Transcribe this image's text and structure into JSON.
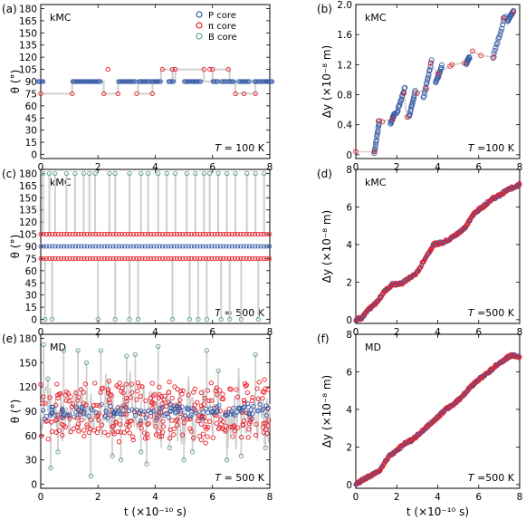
{
  "shared": {
    "xlabel": "t (×10⁻¹⁰ s)",
    "x_ticks": [
      "0",
      "2",
      "4",
      "6",
      "8"
    ],
    "theta_ylabel": "θ (°)",
    "dy_ylabel": "Δy (×10⁻⁸ m)"
  },
  "legend": [
    {
      "label": "P core",
      "color": "#3a5fa8"
    },
    {
      "label": "π core",
      "color": "#e8202a"
    },
    {
      "label": "B core",
      "color": "#5fa08a"
    }
  ],
  "colors": {
    "line": "#c8c8c8",
    "P": "#3a5fa8",
    "pi": "#e8202a",
    "B": "#5fa08a",
    "track": "#cfcfcf"
  },
  "chart_data": [
    {
      "panel": "(a)",
      "type": "scatter",
      "tag": "kMC",
      "note_prefix": "T",
      "note_value": "= 100 K",
      "xlabel": "",
      "ylabel": "θ (°)",
      "xlim": [
        0,
        8
      ],
      "ylim": [
        -5,
        185
      ],
      "yticks": [
        "0",
        "15",
        "30",
        "45",
        "60",
        "75",
        "90",
        "105",
        "120",
        "135",
        "150",
        "165",
        "180"
      ],
      "step_path": [
        [
          0,
          75
        ],
        [
          1.1,
          75
        ],
        [
          1.1,
          90
        ],
        [
          2.2,
          90
        ],
        [
          2.2,
          75
        ],
        [
          2.7,
          75
        ],
        [
          2.7,
          90
        ],
        [
          3.4,
          90
        ],
        [
          3.4,
          75
        ],
        [
          3.9,
          75
        ],
        [
          3.9,
          90
        ],
        [
          4.2,
          90
        ],
        [
          4.2,
          105
        ],
        [
          4.6,
          105
        ],
        [
          4.6,
          90
        ],
        [
          4.7,
          90
        ],
        [
          4.7,
          105
        ],
        [
          5.7,
          105
        ],
        [
          5.7,
          90
        ],
        [
          6.0,
          90
        ],
        [
          6.0,
          105
        ],
        [
          6.6,
          105
        ],
        [
          6.6,
          90
        ],
        [
          6.8,
          90
        ],
        [
          6.8,
          75
        ],
        [
          7.5,
          75
        ],
        [
          7.5,
          90
        ],
        [
          8,
          90
        ]
      ],
      "series": [
        {
          "name": "P core",
          "points": [
            [
              0,
              90
            ],
            [
              1.2,
              90
            ],
            [
              1.4,
              90
            ],
            [
              1.6,
              90
            ],
            [
              1.8,
              90
            ],
            [
              2.0,
              90
            ],
            [
              2.8,
              90
            ],
            [
              3.0,
              90
            ],
            [
              3.2,
              90
            ],
            [
              3.5,
              90
            ],
            [
              3.7,
              90
            ],
            [
              3.95,
              90
            ],
            [
              4.1,
              90
            ],
            [
              4.55,
              90
            ],
            [
              5.1,
              90
            ],
            [
              5.3,
              90
            ],
            [
              5.5,
              90
            ],
            [
              6.1,
              90
            ],
            [
              6.4,
              90
            ],
            [
              6.65,
              90
            ],
            [
              7.0,
              90
            ],
            [
              7.2,
              90
            ],
            [
              7.55,
              90
            ],
            [
              7.8,
              90
            ],
            [
              8.0,
              90
            ]
          ]
        },
        {
          "name": "π core",
          "points": [
            [
              0,
              75
            ],
            [
              1.1,
              75
            ],
            [
              2.2,
              75
            ],
            [
              2.35,
              105
            ],
            [
              2.7,
              75
            ],
            [
              3.35,
              75
            ],
            [
              3.9,
              75
            ],
            [
              4.25,
              105
            ],
            [
              4.6,
              105
            ],
            [
              4.7,
              105
            ],
            [
              5.7,
              105
            ],
            [
              5.9,
              105
            ],
            [
              6.0,
              105
            ],
            [
              6.55,
              105
            ],
            [
              6.8,
              75
            ],
            [
              7.1,
              75
            ],
            [
              7.5,
              75
            ]
          ]
        },
        {
          "name": "B core",
          "points": []
        }
      ]
    },
    {
      "panel": "(b)",
      "type": "scatter",
      "tag": "kMC",
      "note_prefix": "T",
      "note_value": "=100 K",
      "xlabel": "",
      "ylabel": "Δy (×10⁻⁸ m)",
      "xlim": [
        0,
        8
      ],
      "ylim": [
        -0.05,
        2.0
      ],
      "yticks": [
        "0",
        "0.4",
        "0.8",
        "1.2",
        "1.6",
        "2.0"
      ],
      "series": [
        {
          "name": "P core",
          "segments": [
            [
              [
                0.9,
                0.02
              ],
              [
                1.15,
                0.45
              ]
            ],
            [
              [
                1.7,
                0.42
              ],
              [
                1.9,
                0.55
              ]
            ],
            [
              [
                2.0,
                0.55
              ],
              [
                2.4,
                0.9
              ]
            ],
            [
              [
                2.6,
                0.5
              ],
              [
                2.9,
                0.85
              ]
            ],
            [
              [
                3.3,
                0.75
              ],
              [
                3.7,
                1.25
              ]
            ],
            [
              [
                3.9,
                0.95
              ],
              [
                4.2,
                1.18
              ]
            ],
            [
              [
                5.4,
                1.22
              ],
              [
                5.55,
                1.3
              ]
            ],
            [
              [
                6.7,
                1.3
              ],
              [
                7.3,
                1.85
              ]
            ],
            [
              [
                7.4,
                1.78
              ],
              [
                7.7,
                1.92
              ]
            ]
          ]
        },
        {
          "name": "π core",
          "points": [
            [
              0,
              0.04
            ],
            [
              0.9,
              0.04
            ],
            [
              1.1,
              0.45
            ],
            [
              1.3,
              0.44
            ],
            [
              1.8,
              0.48
            ],
            [
              2.35,
              0.82
            ],
            [
              2.5,
              0.5
            ],
            [
              3.0,
              0.82
            ],
            [
              3.45,
              0.88
            ],
            [
              3.65,
              1.22
            ],
            [
              4.0,
              1.08
            ],
            [
              4.6,
              1.18
            ],
            [
              4.7,
              1.2
            ],
            [
              5.3,
              1.22
            ],
            [
              5.7,
              1.38
            ],
            [
              6.1,
              1.32
            ],
            [
              6.75,
              1.3
            ],
            [
              7.2,
              1.82
            ],
            [
              7.7,
              1.9
            ]
          ]
        }
      ]
    },
    {
      "panel": "(c)",
      "type": "scatter",
      "tag": "kMC",
      "note_prefix": "T",
      "note_value": "= 500 K",
      "xlabel": "",
      "ylabel": "θ (°)",
      "xlim": [
        0,
        8
      ],
      "ylim": [
        -5,
        185
      ],
      "yticks": [
        "0",
        "15",
        "30",
        "45",
        "60",
        "75",
        "90",
        "105",
        "120",
        "135",
        "150",
        "165",
        "180"
      ],
      "series": [
        {
          "name": "P core",
          "band": 90
        },
        {
          "name": "π core",
          "bands": [
            75,
            105
          ]
        },
        {
          "name": "B core",
          "spikes_top": [
            0.08,
            0.3,
            0.5,
            0.9,
            1.2,
            1.5,
            1.7,
            1.9,
            2.4,
            2.6,
            3.1,
            3.5,
            3.75,
            4.1,
            4.4,
            4.7,
            5.1,
            5.4,
            5.7,
            5.9,
            6.2,
            6.5,
            6.8,
            7.2,
            7.5,
            7.8
          ],
          "spikes_bottom": [
            0.15,
            0.4,
            2.0,
            2.6,
            3.1,
            3.4,
            4.6,
            5.2,
            5.5,
            5.8,
            6.3,
            6.6,
            7.0,
            7.6
          ]
        }
      ]
    },
    {
      "panel": "(d)",
      "type": "line",
      "tag": "kMC",
      "note_prefix": "T",
      "note_value": "=500 K",
      "xlabel": "",
      "ylabel": "Δy (×10⁻⁸ m)",
      "xlim": [
        0,
        8
      ],
      "ylim": [
        -0.2,
        8
      ],
      "yticks": [
        "0",
        "2",
        "4",
        "6",
        "8"
      ],
      "series": [
        {
          "name": "trajectory",
          "x": [
            0,
            0.3,
            0.6,
            1.0,
            1.4,
            1.8,
            2.2,
            2.6,
            3.0,
            3.4,
            3.8,
            4.2,
            4.6,
            5.0,
            5.4,
            5.8,
            6.2,
            6.6,
            7.0,
            7.4,
            7.8,
            8.0
          ],
          "y": [
            0,
            0.1,
            0.5,
            0.9,
            1.5,
            1.9,
            1.9,
            2.2,
            2.5,
            3.3,
            4.0,
            4.1,
            4.3,
            4.6,
            5.0,
            5.7,
            6.0,
            6.4,
            6.6,
            6.9,
            7.1,
            7.2
          ]
        }
      ]
    },
    {
      "panel": "(e)",
      "type": "scatter",
      "tag": "MD",
      "note_prefix": "T",
      "note_value": "= 500 K",
      "xlabel": "t (×10⁻¹⁰ s)",
      "ylabel": "θ (°)",
      "xlim": [
        0,
        8
      ],
      "ylim": [
        -5,
        185
      ],
      "yticks": [
        "0",
        "30",
        "60",
        "90",
        "120",
        "150",
        "180"
      ],
      "series": [
        {
          "name": "P core",
          "center": 90,
          "spread": 10
        },
        {
          "name": "π core",
          "centers": [
            72,
            108
          ],
          "spread": 14
        },
        {
          "name": "B core",
          "outliers": [
            [
              0.1,
              172
            ],
            [
              0.25,
              130
            ],
            [
              0.35,
              20
            ],
            [
              0.6,
              40
            ],
            [
              0.8,
              165
            ],
            [
              1.3,
              165
            ],
            [
              1.6,
              150
            ],
            [
              1.75,
              10
            ],
            [
              2.1,
              165
            ],
            [
              2.5,
              35
            ],
            [
              2.8,
              30
            ],
            [
              3.0,
              158
            ],
            [
              3.3,
              160
            ],
            [
              3.5,
              40
            ],
            [
              3.7,
              25
            ],
            [
              4.1,
              170
            ],
            [
              4.5,
              45
            ],
            [
              5.0,
              30
            ],
            [
              5.3,
              40
            ],
            [
              5.8,
              165
            ],
            [
              6.2,
              140
            ],
            [
              6.5,
              30
            ],
            [
              7.0,
              35
            ],
            [
              7.5,
              160
            ],
            [
              7.85,
              45
            ]
          ]
        }
      ]
    },
    {
      "panel": "(f)",
      "type": "line",
      "tag": "MD",
      "note_prefix": "T",
      "note_value": "=500 K",
      "xlabel": "t (×10⁻¹⁰ s)",
      "ylabel": "Δy (×10⁻⁸ m)",
      "xlim": [
        0,
        8
      ],
      "ylim": [
        -0.2,
        8
      ],
      "yticks": [
        "0",
        "2",
        "4",
        "6",
        "8"
      ],
      "series": [
        {
          "name": "trajectory",
          "x": [
            0,
            0.4,
            0.8,
            1.2,
            1.6,
            2.0,
            2.4,
            2.8,
            3.2,
            3.6,
            4.0,
            4.4,
            4.8,
            5.2,
            5.6,
            6.0,
            6.4,
            6.8,
            7.2,
            7.6,
            8.0
          ],
          "y": [
            0,
            0.3,
            0.5,
            0.8,
            1.5,
            1.8,
            2.2,
            2.4,
            2.8,
            3.2,
            3.6,
            4.0,
            4.3,
            4.7,
            5.2,
            5.6,
            5.9,
            6.3,
            6.6,
            6.9,
            6.8
          ]
        }
      ]
    }
  ]
}
